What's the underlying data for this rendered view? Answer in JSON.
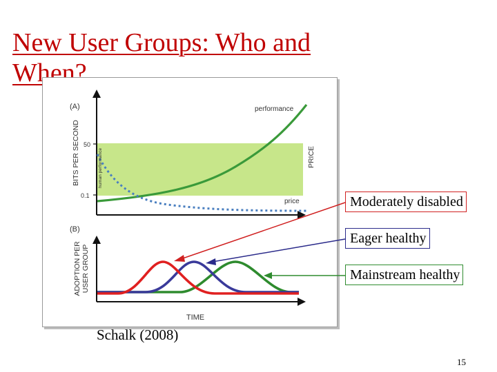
{
  "slide": {
    "title": "New User Groups: Who and\nWhen?",
    "citation": "Schalk (2008)",
    "page_number": "15"
  },
  "figure": {
    "panel_a": {
      "label": "(A)",
      "y_axis_label": "BITS PER SECOND",
      "right_axis_label": "PRICE",
      "band_label": "human performance",
      "tick_high": "50",
      "tick_low": "0.1",
      "curve_performance_label": "performance",
      "curve_price_label": "price"
    },
    "panel_b": {
      "label": "(B)",
      "y_axis_label_line1": "ADOPTION PER",
      "y_axis_label_line2": "USER GROUP",
      "x_axis_label": "TIME"
    },
    "colors": {
      "band": "#c7e68a",
      "performance_curve": "#3a9a3a",
      "price_curve": "#4a7fc0",
      "red_curve": "#e02020",
      "blue_curve": "#3a3a9a",
      "green_curve": "#2e8b2e"
    }
  },
  "callouts": {
    "moderately_disabled": "Moderately disabled",
    "eager_healthy": "Eager healthy",
    "mainstream_healthy": "Mainstream healthy"
  }
}
